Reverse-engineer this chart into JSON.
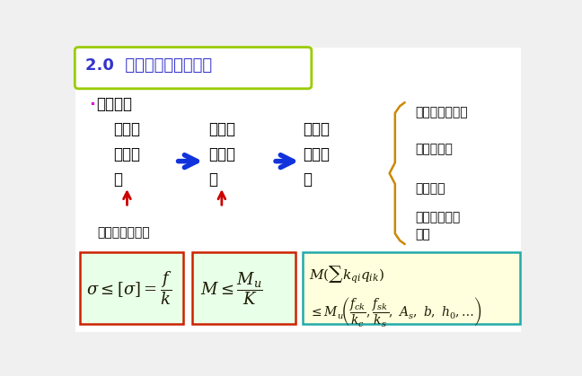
{
  "title": "2.0  结构设计理论的发展",
  "title_color": "#3333cc",
  "bg_color": "#f0f0f0",
  "title_box_edge": "#99cc00",
  "bullet_dot_color": "#dd00dd",
  "bullet_text": "设计方法",
  "block1": "允许应\n力设计\n法",
  "block2": "破坏阶\n段设计\n法",
  "block3": "极限状\n态设计\n法",
  "arrow_color": "#1133dd",
  "red_arrow_color": "#cc0000",
  "bottom_label": "材料力学的方法",
  "right_label1": "半经验半概率法",
  "right_label2": "近似概率法",
  "right_label3": "全概率法",
  "right_label4": "生命全过程设\n计法",
  "brace_color": "#cc8800",
  "box_fill1": "#e8ffe8",
  "box_fill2": "#e8ffe8",
  "box_fill3": "#ffffdd",
  "formula_border1": "#cc2200",
  "formula_border2": "#cc2200",
  "formula_border3": "#22aaaa",
  "text_color": "#000000"
}
